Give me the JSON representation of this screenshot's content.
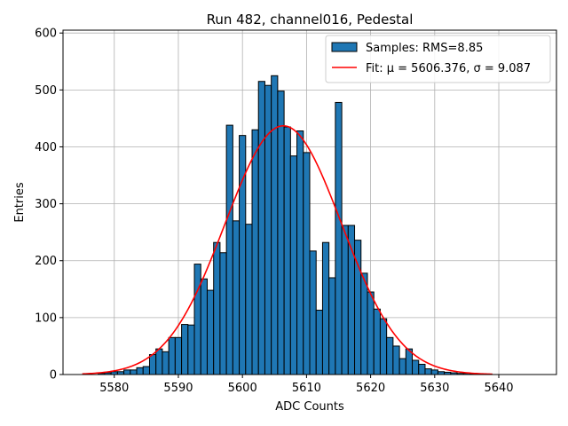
{
  "chart_data": {
    "type": "bar",
    "title": "Run 482, channel016, Pedestal",
    "xlabel": "ADC Counts",
    "ylabel": "Entries",
    "xlim": [
      5572,
      5649
    ],
    "ylim": [
      0,
      605
    ],
    "xticks": [
      5580,
      5590,
      5600,
      5610,
      5620,
      5630,
      5640
    ],
    "yticks": [
      0,
      100,
      200,
      300,
      400,
      500,
      600
    ],
    "grid": true,
    "legend_position": "top-right",
    "bin_width": 1,
    "bins": [
      5576,
      5577,
      5578,
      5579,
      5580,
      5581,
      5582,
      5583,
      5584,
      5585,
      5586,
      5587,
      5588,
      5589,
      5590,
      5591,
      5592,
      5593,
      5594,
      5595,
      5596,
      5597,
      5598,
      5599,
      5600,
      5601,
      5602,
      5603,
      5604,
      5605,
      5606,
      5607,
      5608,
      5609,
      5610,
      5611,
      5612,
      5613,
      5614,
      5615,
      5616,
      5617,
      5618,
      5619,
      5620,
      5621,
      5622,
      5623,
      5624,
      5625,
      5626,
      5627,
      5628,
      5629,
      5630,
      5631,
      5632,
      5633,
      5634,
      5635,
      5636,
      5637,
      5638,
      5639,
      5640,
      5641,
      5642,
      5643,
      5644,
      5645
    ],
    "series": [
      {
        "name": "Samples: RMS=8.85",
        "kind": "histogram",
        "color": "#1f77b4",
        "edge_color": "#000000",
        "values": [
          0,
          0,
          2,
          3,
          5,
          5,
          8,
          8,
          12,
          14,
          35,
          45,
          40,
          65,
          65,
          88,
          87,
          194,
          168,
          148,
          232,
          214,
          438,
          270,
          420,
          264,
          430,
          515,
          508,
          525,
          498,
          435,
          384,
          428,
          390,
          217,
          113,
          232,
          170,
          478,
          262,
          262,
          236,
          178,
          145,
          115,
          98,
          65,
          50,
          28,
          45,
          25,
          18,
          10,
          8,
          5,
          4,
          3,
          2,
          2,
          1,
          1,
          0,
          0,
          0,
          0,
          0,
          0,
          0,
          0
        ]
      },
      {
        "name": "Fit: μ = 5606.376, σ = 9.087",
        "kind": "gaussian_fit",
        "color": "#ff0000",
        "mu": 5606.376,
        "sigma": 9.087,
        "amplitude": 437,
        "x_range": [
          5575,
          5639
        ]
      }
    ]
  }
}
